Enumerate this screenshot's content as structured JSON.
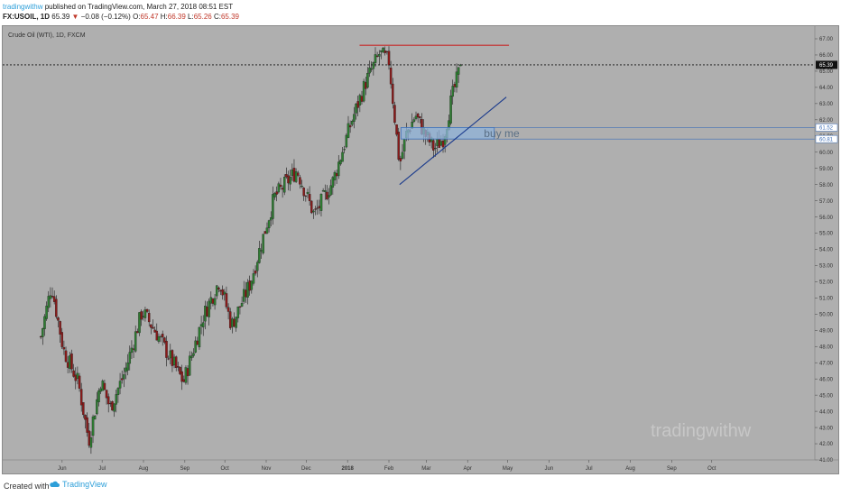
{
  "header": {
    "author": "tradingwithw",
    "published_text": " published on TradingView.com, March 27, 2018 08:51 EST",
    "symbol_interval": "FX:USOIL, 1D",
    "last": "65.39",
    "arrow": "▼",
    "change": "−0.08 (−0.12%)",
    "o_label": "O:",
    "o_value": "65.47",
    "h_label": "H:",
    "h_value": "66.39",
    "l_label": "L:",
    "l_value": "65.26",
    "c_label": "C:",
    "c_value": "65.39"
  },
  "footer": {
    "created_with": "Created with",
    "brand": "TradingView"
  },
  "chart_data": {
    "type": "candlestick",
    "title": "Crude Oil (WTI), 1D, FXCM",
    "watermark": "tradingwithw",
    "x_labels": [
      "Jun",
      "Jul",
      "Aug",
      "Sep",
      "Oct",
      "Nov",
      "Dec",
      "2018",
      "Feb",
      "Mar",
      "Apr",
      "May",
      "Jun",
      "Jul",
      "Aug",
      "Sep",
      "Oct"
    ],
    "y_ticks": [
      "67.00",
      "66.00",
      "65.00",
      "64.00",
      "63.00",
      "62.00",
      "61.00",
      "60.00",
      "59.00",
      "58.00",
      "57.00",
      "56.00",
      "55.00",
      "54.00",
      "53.00",
      "52.00",
      "51.00",
      "50.00",
      "49.00",
      "48.00",
      "47.00",
      "46.00",
      "45.00",
      "44.00",
      "43.00",
      "42.00",
      "41.00"
    ],
    "ylim": [
      40.7,
      67.5
    ],
    "price_path": [
      {
        "date": "2017-05-16",
        "close": 48.6
      },
      {
        "date": "2017-05-24",
        "close": 51.8
      },
      {
        "date": "2017-06-02",
        "close": 47.8
      },
      {
        "date": "2017-06-13",
        "close": 45.8
      },
      {
        "date": "2017-06-21",
        "close": 42.2
      },
      {
        "date": "2017-06-30",
        "close": 45.9
      },
      {
        "date": "2017-07-07",
        "close": 44.2
      },
      {
        "date": "2017-07-18",
        "close": 46.4
      },
      {
        "date": "2017-07-31",
        "close": 50.2
      },
      {
        "date": "2017-08-11",
        "close": 48.8
      },
      {
        "date": "2017-08-31",
        "close": 45.8
      },
      {
        "date": "2017-09-15",
        "close": 49.9
      },
      {
        "date": "2017-09-27",
        "close": 52.1
      },
      {
        "date": "2017-10-06",
        "close": 49.3
      },
      {
        "date": "2017-10-20",
        "close": 51.9
      },
      {
        "date": "2017-11-07",
        "close": 57.2
      },
      {
        "date": "2017-11-24",
        "close": 58.9
      },
      {
        "date": "2017-12-07",
        "close": 56.1
      },
      {
        "date": "2017-12-21",
        "close": 58.2
      },
      {
        "date": "2018-01-04",
        "close": 61.9
      },
      {
        "date": "2018-01-15",
        "close": 64.4
      },
      {
        "date": "2018-01-25",
        "close": 66.1
      },
      {
        "date": "2018-02-01",
        "close": 65.6
      },
      {
        "date": "2018-02-09",
        "close": 59.2
      },
      {
        "date": "2018-02-14",
        "close": 61.1
      },
      {
        "date": "2018-02-21",
        "close": 62.3
      },
      {
        "date": "2018-02-28",
        "close": 61.1
      },
      {
        "date": "2018-03-07",
        "close": 60.2
      },
      {
        "date": "2018-03-14",
        "close": 60.9
      },
      {
        "date": "2018-03-20",
        "close": 63.3
      },
      {
        "date": "2018-03-27",
        "close": 65.39
      }
    ],
    "current_price": {
      "value": 65.39,
      "label": "65.39"
    },
    "resistance_line": {
      "price": 66.6,
      "from": "2018-01-10",
      "to": "2018-05-02"
    },
    "trendline": {
      "from": {
        "date": "2018-02-09",
        "price": 58.0
      },
      "to": {
        "date": "2018-04-30",
        "price": 63.4
      }
    },
    "buy_zone": {
      "text": "buy me",
      "top": 61.52,
      "bottom": 60.81,
      "top_label": "61.52",
      "bottom_label": "60.81",
      "from": "2018-02-10",
      "to": "2018-04-21"
    },
    "colors": {
      "up": "#2e7d32",
      "down": "#8b1a1a",
      "resistance": "#c62828",
      "trendline": "#1a3a8c",
      "zone_fill": "#8fb3d9",
      "zone_border": "#3d6fb8",
      "current_label_bg": "#111111"
    },
    "grid": false
  }
}
